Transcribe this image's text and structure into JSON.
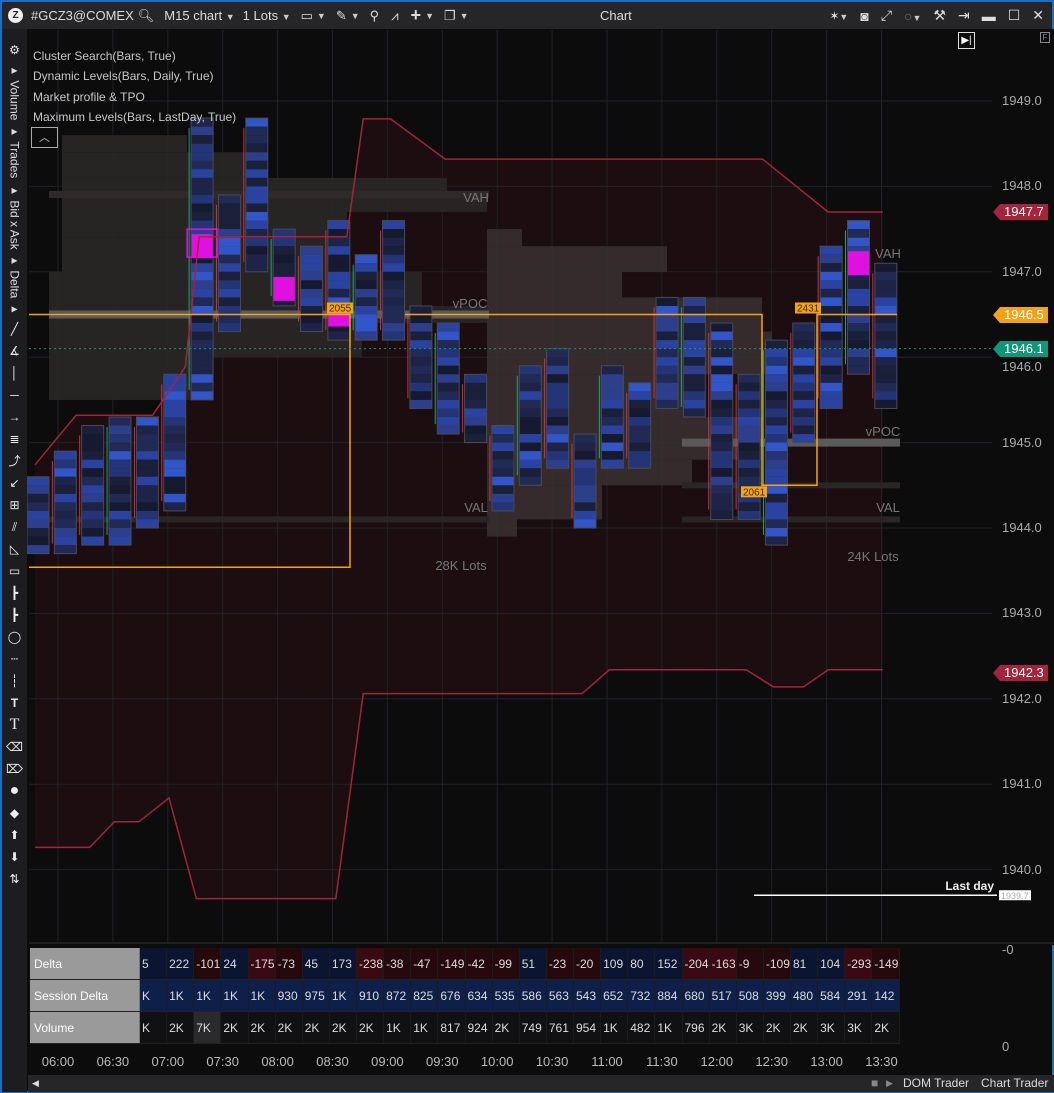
{
  "titlebar": {
    "symbol": "#GCZ3@COMEX",
    "chart_type": "M15 chart",
    "lots": "1 Lots",
    "title": "Chart",
    "icons": [
      "logo-icon",
      "search-icon",
      "monitor-icon",
      "pencil-icon",
      "zoom-icon",
      "indicator-icon",
      "crosshair-icon",
      "window-icon",
      "cursor-icon",
      "camera-icon",
      "fullscreen-icon",
      "circle-icon",
      "tools-icon",
      "pin-icon",
      "minimize-icon",
      "maximize-icon",
      "close-icon"
    ]
  },
  "left_toolbar": {
    "tabs": [
      "Volume",
      "Trades",
      "Bid x Ask",
      "Delta"
    ]
  },
  "legend": [
    "Cluster Search(Bars, True)",
    "Dynamic Levels(Bars, Daily, True)",
    "Market profile & TPO",
    "Maximum Levels(Bars, LastDay, True)"
  ],
  "chart_data": {
    "type": "cluster-candlestick",
    "ylim": [
      1939.0,
      1949.4
    ],
    "y_ticks": [
      "1949.0",
      "1948.0",
      "1947.0",
      "1946.0",
      "1945.0",
      "1944.0",
      "1943.0",
      "1942.0",
      "1941.0",
      "1940.0"
    ],
    "x_ticks": [
      "06:00",
      "06:30",
      "07:00",
      "07:30",
      "08:00",
      "08:30",
      "09:00",
      "09:30",
      "10:00",
      "10:30",
      "11:00",
      "11:30",
      "12:00",
      "12:30",
      "13:00",
      "13:30"
    ],
    "bars": [
      {
        "high": 1944.6,
        "low": 1943.7
      },
      {
        "high": 1944.9,
        "low": 1943.7
      },
      {
        "high": 1945.2,
        "low": 1943.8
      },
      {
        "high": 1945.3,
        "low": 1943.8
      },
      {
        "high": 1945.3,
        "low": 1944.0
      },
      {
        "high": 1945.8,
        "low": 1944.2
      },
      {
        "high": 1948.8,
        "low": 1945.5
      },
      {
        "high": 1947.9,
        "low": 1946.3
      },
      {
        "high": 1948.8,
        "low": 1947.0
      },
      {
        "high": 1947.5,
        "low": 1946.6
      },
      {
        "high": 1947.3,
        "low": 1946.3
      },
      {
        "high": 1947.6,
        "low": 1946.2
      },
      {
        "high": 1947.2,
        "low": 1946.2
      },
      {
        "high": 1947.6,
        "low": 1946.2
      },
      {
        "high": 1946.6,
        "low": 1945.4
      },
      {
        "high": 1946.4,
        "low": 1945.1
      },
      {
        "high": 1945.8,
        "low": 1945.0
      },
      {
        "high": 1945.2,
        "low": 1944.2
      },
      {
        "high": 1945.9,
        "low": 1944.5
      },
      {
        "high": 1946.1,
        "low": 1944.7
      },
      {
        "high": 1945.1,
        "low": 1944.0
      },
      {
        "high": 1945.9,
        "low": 1944.7
      },
      {
        "high": 1945.7,
        "low": 1944.7
      },
      {
        "high": 1946.7,
        "low": 1945.4
      },
      {
        "high": 1946.7,
        "low": 1945.3
      },
      {
        "high": 1946.4,
        "low": 1944.1
      },
      {
        "high": 1945.8,
        "low": 1944.1
      },
      {
        "high": 1946.2,
        "low": 1943.8
      },
      {
        "high": 1946.4,
        "low": 1945.0
      },
      {
        "high": 1947.3,
        "low": 1945.4
      },
      {
        "high": 1947.6,
        "low": 1945.8
      },
      {
        "high": 1947.1,
        "low": 1945.4
      }
    ],
    "max_cluster": [
      {
        "bar": 6,
        "price": 1947.3
      },
      {
        "bar": 9,
        "price": 1946.8
      },
      {
        "bar": 11,
        "price": 1946.5
      },
      {
        "bar": 30,
        "price": 1947.1
      }
    ],
    "dynamic_upper": [
      [
        0,
        1944.74
      ],
      [
        1.5,
        1945.32
      ],
      [
        4.3,
        1945.32
      ],
      [
        5.5,
        1945.89
      ],
      [
        6,
        1947.41
      ],
      [
        11.4,
        1947.41
      ],
      [
        12,
        1948.79
      ],
      [
        13,
        1948.79
      ],
      [
        15,
        1948.32
      ],
      [
        26.6,
        1948.32
      ],
      [
        29,
        1947.7
      ],
      [
        31,
        1947.7
      ]
    ],
    "dynamic_lower": [
      [
        0,
        1940.26
      ],
      [
        2,
        1940.26
      ],
      [
        2.9,
        1940.56
      ],
      [
        3.8,
        1940.56
      ],
      [
        4.9,
        1940.84
      ],
      [
        5.9,
        1939.66
      ],
      [
        11,
        1939.66
      ],
      [
        12,
        1942.06
      ],
      [
        20,
        1942.06
      ],
      [
        21,
        1942.34
      ],
      [
        26,
        1942.34
      ],
      [
        27,
        1942.14
      ],
      [
        28.1,
        1942.14
      ],
      [
        29,
        1942.34
      ],
      [
        31,
        1942.34
      ]
    ],
    "profiles": [
      {
        "vah_label": "VAH",
        "vpoc_label": "vPOC",
        "val_label": "VAL",
        "volume_label": "28K Lots",
        "vah": 1947.9,
        "vpoc": 1946.5,
        "val": 1944.1
      },
      {
        "vah_label": "VAH",
        "vpoc_label": "vPOC",
        "val_label": "VAL",
        "volume_label": "24K Lots",
        "vah": 1947.3,
        "vpoc": 1945.0,
        "val": 1944.1
      }
    ],
    "max_levels": [
      {
        "label": "2055",
        "price": 1946.5
      },
      {
        "label": "2431",
        "price": 1946.5
      },
      {
        "label": "2061",
        "price": 1944.5
      }
    ],
    "last_day": {
      "label": "Last day",
      "price": "1939.7"
    },
    "current_price": 1946.1,
    "price_tags": [
      {
        "value": "1947.7",
        "color": "#a3243b"
      },
      {
        "value": "1946.5",
        "color": "#f5a316"
      },
      {
        "value": "1946.1",
        "color": "#13957a"
      },
      {
        "value": "1942.3",
        "color": "#a3243b"
      }
    ]
  },
  "indicator_table": {
    "rows": [
      {
        "label": "Delta",
        "values": [
          "5",
          "222",
          "-101",
          "24",
          "-175",
          "-73",
          "45",
          "173",
          "-238",
          "-38",
          "-47",
          "-149",
          "-42",
          "-99",
          "51",
          "-23",
          "-20",
          "109",
          "80",
          "152",
          "-204",
          "-163",
          "-9",
          "-109",
          "81",
          "104",
          "-293",
          "-149"
        ]
      },
      {
        "label": "Session Delta",
        "values": [
          "K",
          "1K",
          "1K",
          "1K",
          "1K",
          "930",
          "975",
          "1K",
          "910",
          "872",
          "825",
          "676",
          "634",
          "535",
          "586",
          "563",
          "543",
          "652",
          "732",
          "884",
          "680",
          "517",
          "508",
          "399",
          "480",
          "584",
          "291",
          "142"
        ]
      },
      {
        "label": "Volume",
        "values": [
          "K",
          "2K",
          "7K",
          "2K",
          "2K",
          "2K",
          "2K",
          "2K",
          "2K",
          "1K",
          "1K",
          "817",
          "924",
          "2K",
          "749",
          "761",
          "954",
          "1K",
          "482",
          "1K",
          "796",
          "2K",
          "3K",
          "2K",
          "2K",
          "3K",
          "3K",
          "2K"
        ]
      }
    ],
    "axis_top": "-0",
    "axis_bottom": "0"
  },
  "bottom_bar": {
    "dom_trader": "DOM Trader",
    "chart_trader": "Chart Trader"
  }
}
